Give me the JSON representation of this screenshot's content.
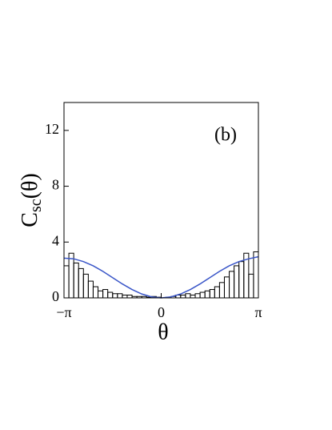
{
  "chart_data": {
    "type": "histogram",
    "annotation": "(b)",
    "x_label": "θ",
    "y_label": {
      "main": "C",
      "sub": "sc",
      "tail": "(θ)"
    },
    "bins": [
      -3.1416,
      -2.9845,
      -2.8274,
      -2.6704,
      -2.5133,
      -2.3562,
      -2.1991,
      -2.042,
      -1.885,
      -1.7279,
      -1.5708,
      -1.4137,
      -1.2566,
      -1.0996,
      -0.9425,
      -0.7854,
      -0.6283,
      -0.4712,
      -0.3142,
      -0.1571,
      0,
      0.1571,
      0.3142,
      0.4712,
      0.6283,
      0.7854,
      0.9425,
      1.0996,
      1.2566,
      1.4137,
      1.5708,
      1.7279,
      1.885,
      2.042,
      2.1991,
      2.3562,
      2.5133,
      2.6704,
      2.8274,
      2.9845,
      3.1416
    ],
    "values": [
      2.3,
      3.2,
      2.5,
      2.1,
      1.7,
      1.2,
      0.8,
      0.5,
      0.6,
      0.4,
      0.3,
      0.3,
      0.2,
      0.2,
      0.1,
      0.1,
      0.1,
      0.05,
      0.1,
      0.05,
      0,
      0.05,
      0.1,
      0.2,
      0.2,
      0.3,
      0.2,
      0.3,
      0.4,
      0.5,
      0.6,
      0.8,
      1.1,
      1.5,
      1.9,
      2.3,
      2.6,
      3.2,
      1.7,
      3.3
    ],
    "color": "#000000",
    "curve": {
      "type": "line",
      "color": "#3a56c8",
      "x": [
        -3.1416,
        -2.8274,
        -2.5133,
        -2.1991,
        -1.885,
        -1.5708,
        -1.2566,
        -0.9425,
        -0.6283,
        -0.3142,
        0,
        0.3142,
        0.6283,
        0.9425,
        1.2566,
        1.5708,
        1.885,
        2.1991,
        2.5133,
        2.8274,
        3.1416
      ],
      "values": [
        2.85,
        2.8,
        2.6,
        2.3,
        1.9,
        1.45,
        1.0,
        0.6,
        0.28,
        0.07,
        0,
        0.07,
        0.28,
        0.6,
        1.0,
        1.45,
        1.9,
        2.3,
        2.6,
        2.8,
        2.95
      ]
    },
    "xlim": [
      -3.1416,
      3.1416
    ],
    "xticks": [
      {
        "value": -3.1416,
        "label": "−π"
      },
      0,
      {
        "value": 3.1416,
        "label": "π"
      }
    ],
    "ylim": [
      0,
      14
    ],
    "yticks": [
      0,
      4,
      8,
      12
    ]
  }
}
